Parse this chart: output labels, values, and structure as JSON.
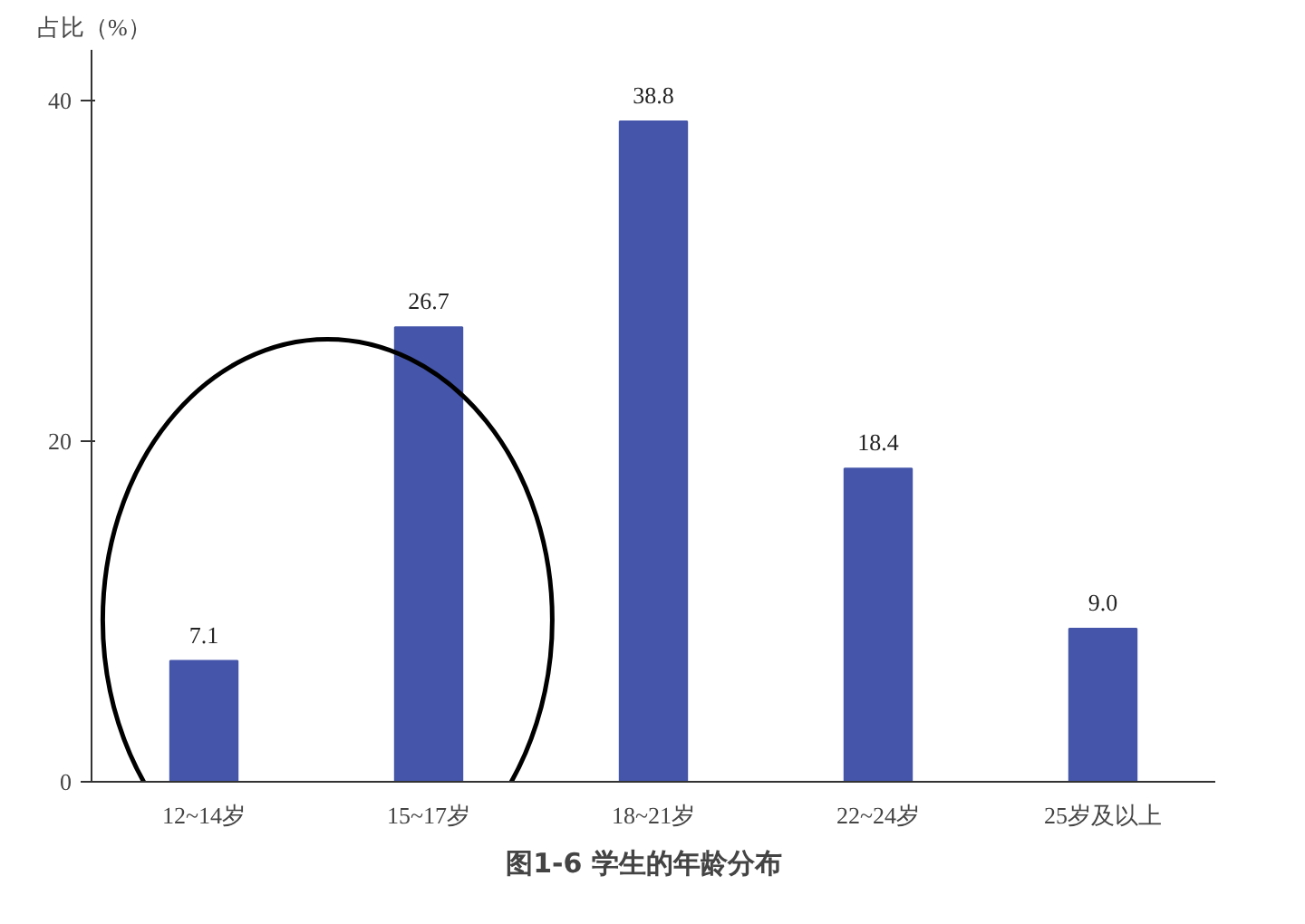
{
  "chart_data": {
    "type": "bar",
    "title": "图1-6   学生的年龄分布",
    "ylabel": "占比（%）",
    "categories": [
      "12~14岁",
      "15~17岁",
      "18~21岁",
      "22~24岁",
      "25岁及以上"
    ],
    "values": [
      7.1,
      26.7,
      38.8,
      18.4,
      9.0
    ],
    "value_labels": [
      "7.1",
      "26.7",
      "38.8",
      "18.4",
      "9.0"
    ],
    "color": "#4455aa",
    "ylim": [
      0,
      43
    ],
    "yticks": [
      0,
      20,
      40
    ]
  }
}
